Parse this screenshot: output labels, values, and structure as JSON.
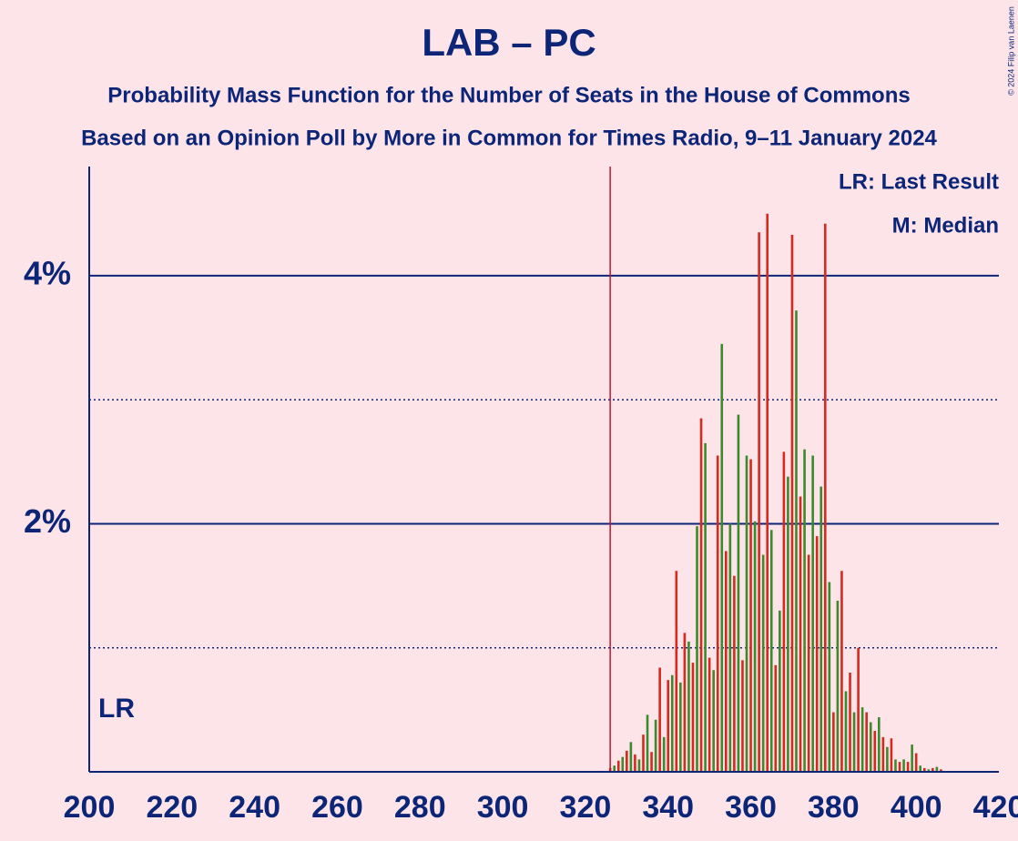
{
  "chart_data": {
    "type": "bar",
    "title": "LAB – PC",
    "subtitle": "Probability Mass Function for the Number of Seats in the House of Commons",
    "subtitle2": "Based on an Opinion Poll by More in Common for Times Radio, 9–11 January 2024",
    "copyright": "© 2024 Filip van Laenen",
    "legend": [
      "LR: Last Result",
      "M: Median"
    ],
    "last_result": 326,
    "last_result_label": "LR",
    "x": [
      326,
      327,
      328,
      329,
      330,
      331,
      332,
      333,
      334,
      335,
      336,
      337,
      338,
      339,
      340,
      341,
      342,
      343,
      344,
      345,
      346,
      347,
      348,
      349,
      350,
      351,
      352,
      353,
      354,
      355,
      356,
      357,
      358,
      359,
      360,
      361,
      362,
      363,
      364,
      365,
      366,
      367,
      368,
      369,
      370,
      371,
      372,
      373,
      374,
      375,
      376,
      377,
      378,
      379,
      380,
      381,
      382,
      383,
      384,
      385,
      386,
      387,
      388,
      389,
      390,
      391,
      392,
      393,
      394,
      395,
      396,
      397,
      398,
      399,
      400,
      401,
      402,
      403,
      404,
      405,
      406
    ],
    "values": [
      0.03,
      0.05,
      0.09,
      0.12,
      0.17,
      0.24,
      0.14,
      0.1,
      0.3,
      0.46,
      0.16,
      0.42,
      0.84,
      0.28,
      0.74,
      0.78,
      1.62,
      0.72,
      1.12,
      1.05,
      0.88,
      1.98,
      2.85,
      2.65,
      0.92,
      0.82,
      2.55,
      3.45,
      1.78,
      2.0,
      1.58,
      2.88,
      0.9,
      2.55,
      2.52,
      2.02,
      4.35,
      1.75,
      4.5,
      1.95,
      0.86,
      1.3,
      2.58,
      2.38,
      4.33,
      3.72,
      2.22,
      2.6,
      1.75,
      2.55,
      1.9,
      2.3,
      4.42,
      1.53,
      0.48,
      1.38,
      1.62,
      0.65,
      0.8,
      0.48,
      1.0,
      0.52,
      0.48,
      0.4,
      0.33,
      0.44,
      0.28,
      0.2,
      0.27,
      0.1,
      0.08,
      0.1,
      0.08,
      0.22,
      0.15,
      0.05,
      0.03,
      0.02,
      0.03,
      0.04,
      0.02
    ],
    "colors": [
      "#d42a1f",
      "#3b8a2c"
    ],
    "xlim": [
      200,
      420
    ],
    "xticks": [
      200,
      220,
      240,
      260,
      280,
      300,
      320,
      340,
      360,
      380,
      400,
      420
    ],
    "ylim": [
      0,
      4.88
    ],
    "yticks": [
      {
        "value": 2,
        "label": "2%"
      },
      {
        "value": 4,
        "label": "4%"
      }
    ],
    "minor_gridlines": [
      1,
      3
    ]
  }
}
